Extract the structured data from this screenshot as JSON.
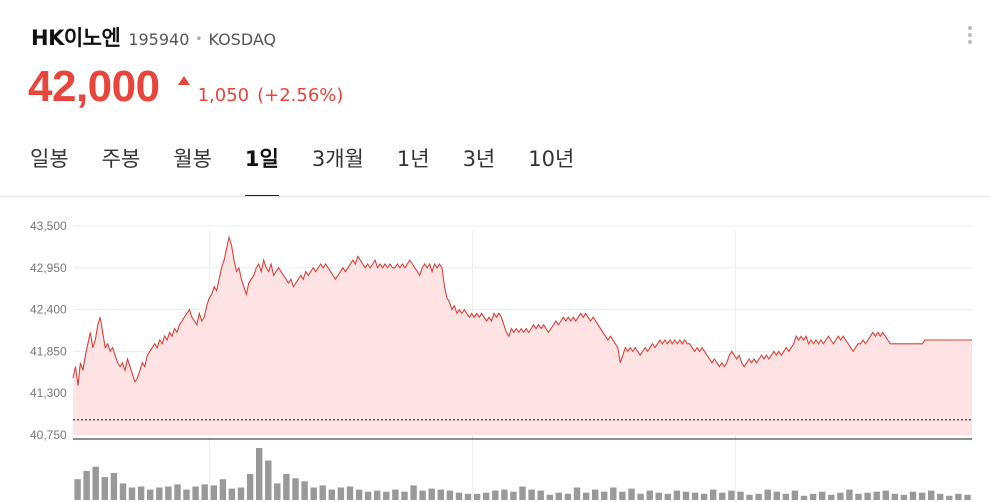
{
  "stock": {
    "name": "HK이노엔",
    "code": "195940",
    "separator": "•",
    "market": "KOSDAQ",
    "price": "42,000",
    "change": "1,050",
    "change_pct": "(+2.56%)",
    "direction": "up"
  },
  "tabs": [
    {
      "label": "일봉",
      "active": false
    },
    {
      "label": "주봉",
      "active": false
    },
    {
      "label": "월봉",
      "active": false
    },
    {
      "label": "1일",
      "active": true
    },
    {
      "label": "3개월",
      "active": false
    },
    {
      "label": "1년",
      "active": false
    },
    {
      "label": "3년",
      "active": false
    },
    {
      "label": "10년",
      "active": false
    }
  ],
  "colors": {
    "up": "#e8453c",
    "line": "#d9413b",
    "area": "#fde3e3",
    "volume": "#999999"
  },
  "chart_data": {
    "type": "area",
    "title": "",
    "xlabel": "",
    "ylabel": "",
    "ylim": [
      40750,
      43500
    ],
    "y_ticks": [
      "43,500",
      "42,950",
      "42,400",
      "41,850",
      "41,300",
      "40,750"
    ],
    "y_tick_values": [
      43500,
      42950,
      42400,
      41850,
      41300,
      40750
    ],
    "grid": true,
    "reference_price": 40950,
    "x_session_steps": [
      0,
      52,
      152,
      252,
      342
    ],
    "series": [
      {
        "values": [
          41500,
          41650,
          41400,
          41700,
          41600,
          41800,
          41950,
          42100,
          41900,
          42000,
          42200,
          42300,
          42100,
          41900,
          41950,
          41850,
          41900,
          41800,
          41700,
          41650,
          41700,
          41600,
          41750,
          41650,
          41550,
          41450,
          41500,
          41600,
          41700,
          41650,
          41800,
          41850,
          41900,
          41950,
          41900,
          42000,
          41950,
          42050,
          42000,
          42100,
          42050,
          42150,
          42100,
          42200,
          42250,
          42300,
          42350,
          42400,
          42300,
          42250,
          42200,
          42350,
          42250,
          42300,
          42450,
          42550,
          42600,
          42700,
          42650,
          42800,
          42950,
          43050,
          43200,
          43350,
          43250,
          43050,
          42900,
          42950,
          42800,
          42700,
          42600,
          42750,
          42800,
          42850,
          42950,
          43000,
          42900,
          43050,
          42950,
          42900,
          43000,
          42850,
          42900,
          42950,
          42900,
          42850,
          42800,
          42750,
          42800,
          42700,
          42750,
          42800,
          42850,
          42800,
          42900,
          42850,
          42900,
          42950,
          42900,
          42950,
          43000,
          42950,
          43000,
          42950,
          42900,
          42850,
          42800,
          42850,
          42900,
          42950,
          42900,
          42950,
          43000,
          43050,
          43000,
          43100,
          43050,
          43000,
          42950,
          43000,
          42950,
          43000,
          43050,
          42950,
          43000,
          42950,
          43000,
          42950,
          43000,
          42950,
          42950,
          43000,
          42950,
          43000,
          42950,
          43000,
          43050,
          43000,
          42950,
          42900,
          42850,
          42950,
          43000,
          42950,
          43000,
          42900,
          43000,
          42950,
          43000,
          42950,
          42700,
          42550,
          42500,
          42400,
          42450,
          42350,
          42400,
          42350,
          42400,
          42350,
          42300,
          42350,
          42300,
          42350,
          42300,
          42350,
          42300,
          42250,
          42300,
          42250,
          42350,
          42300,
          42350,
          42300,
          42200,
          42100,
          42050,
          42150,
          42100,
          42150,
          42100,
          42150,
          42100,
          42150,
          42100,
          42150,
          42200,
          42150,
          42200,
          42150,
          42200,
          42150,
          42100,
          42150,
          42200,
          42250,
          42200,
          42250,
          42300,
          42250,
          42300,
          42250,
          42300,
          42250,
          42300,
          42350,
          42300,
          42350,
          42300,
          42250,
          42300,
          42250,
          42200,
          42150,
          42100,
          42050,
          42000,
          42050,
          42000,
          41950,
          41900,
          41700,
          41800,
          41900,
          41850,
          41900,
          41850,
          41900,
          41850,
          41800,
          41850,
          41900,
          41850,
          41900,
          41950,
          41900,
          41950,
          42000,
          41950,
          42000,
          41950,
          42000,
          41950,
          42000,
          41950,
          42000,
          41950,
          42000,
          41950,
          41950,
          41900,
          41850,
          41900,
          41850,
          41900,
          41850,
          41800,
          41750,
          41700,
          41750,
          41700,
          41650,
          41700,
          41650,
          41700,
          41800,
          41850,
          41800,
          41750,
          41800,
          41700,
          41650,
          41700,
          41750,
          41700,
          41750,
          41700,
          41750,
          41800,
          41750,
          41800,
          41750,
          41800,
          41850,
          41800,
          41850,
          41800,
          41850,
          41900,
          41850,
          41900,
          41950,
          42050,
          42000,
          42050,
          42000,
          42050,
          41950,
          42000,
          41950,
          42000,
          41950,
          42000,
          41950,
          42000,
          42050,
          42000,
          41950,
          42000,
          42050,
          42000,
          42050,
          42000,
          41950,
          41900,
          41850,
          41900,
          41950,
          41950,
          42000,
          41950,
          42000,
          42050,
          42100,
          42050,
          42100,
          42050,
          42100,
          42050,
          42000,
          41950,
          41950,
          41950,
          41950,
          41950,
          41950,
          41950,
          41950,
          41950,
          41950,
          41950,
          41950,
          41950,
          41950,
          42000,
          42000,
          42000,
          42000,
          42000,
          42000,
          42000,
          42000,
          42000,
          42000,
          42000,
          42000,
          42000,
          42000,
          42000,
          42000,
          42000,
          42000,
          42000,
          42000
        ]
      }
    ],
    "volume": [
      20,
      28,
      32,
      22,
      26,
      16,
      12,
      13,
      10,
      12,
      13,
      15,
      10,
      13,
      15,
      14,
      20,
      11,
      12,
      25,
      50,
      38,
      16,
      25,
      21,
      18,
      12,
      14,
      10,
      12,
      13,
      10,
      8,
      9,
      8,
      10,
      8,
      14,
      9,
      11,
      10,
      9,
      7,
      6,
      6,
      7,
      9,
      10,
      8,
      13,
      10,
      9,
      5,
      7,
      6,
      12,
      7,
      10,
      8,
      12,
      8,
      11,
      6,
      9,
      7,
      6,
      9,
      8,
      7,
      6,
      10,
      7,
      9,
      8,
      5,
      6,
      10,
      8,
      6,
      9,
      4,
      6,
      8,
      5,
      7,
      10,
      6,
      7,
      8,
      9,
      6,
      5,
      8,
      7,
      9,
      6,
      4,
      6,
      5
    ]
  }
}
